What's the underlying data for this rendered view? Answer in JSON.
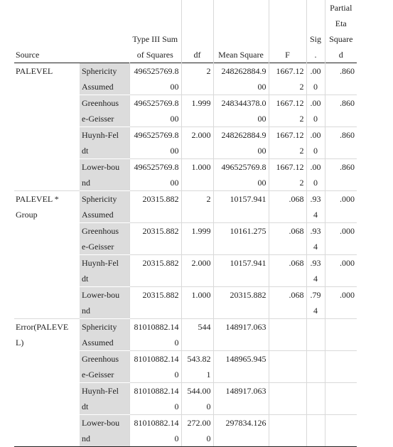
{
  "headers": {
    "source": "Source",
    "ss_line1": "Type III Sum",
    "ss_line2": "of Squares",
    "df": "df",
    "ms": "Mean Square",
    "f": "F",
    "sig_line1": "Sig",
    "sig_line2": ".",
    "pes_line1": "Partial",
    "pes_line2": "Eta",
    "pes_line3": "Square",
    "pes_line4": "d"
  },
  "groups": [
    {
      "source_line1": "PALEVEL",
      "source_line2": "",
      "rows": [
        {
          "v1": "Sphericity",
          "v2": "Assumed",
          "ss1": "496525769.8",
          "ss2": "00",
          "df1": "2",
          "df2": "",
          "ms1": "248262884.9",
          "ms2": "00",
          "f1": "1667.12",
          "f2": "2",
          "sig1": ".00",
          "sig2": "0",
          "pes": ".860"
        },
        {
          "v1": "Greenhous",
          "v2": "e-Geisser",
          "ss1": "496525769.8",
          "ss2": "00",
          "df1": "1.999",
          "df2": "",
          "ms1": "248344378.0",
          "ms2": "00",
          "f1": "1667.12",
          "f2": "2",
          "sig1": ".00",
          "sig2": "0",
          "pes": ".860"
        },
        {
          "v1": "Huynh-Fel",
          "v2": "dt",
          "ss1": "496525769.8",
          "ss2": "00",
          "df1": "2.000",
          "df2": "",
          "ms1": "248262884.9",
          "ms2": "00",
          "f1": "1667.12",
          "f2": "2",
          "sig1": ".00",
          "sig2": "0",
          "pes": ".860"
        },
        {
          "v1": "Lower-bou",
          "v2": "nd",
          "ss1": "496525769.8",
          "ss2": "00",
          "df1": "1.000",
          "df2": "",
          "ms1": "496525769.8",
          "ms2": "00",
          "f1": "1667.12",
          "f2": "2",
          "sig1": ".00",
          "sig2": "0",
          "pes": ".860"
        }
      ]
    },
    {
      "source_line1": "PALEVEL *",
      "source_line2": "Group",
      "rows": [
        {
          "v1": "Sphericity",
          "v2": "Assumed",
          "ss1": "20315.882",
          "ss2": "",
          "df1": "2",
          "df2": "",
          "ms1": "10157.941",
          "ms2": "",
          "f1": ".068",
          "f2": "",
          "sig1": ".93",
          "sig2": "4",
          "pes": ".000"
        },
        {
          "v1": "Greenhous",
          "v2": "e-Geisser",
          "ss1": "20315.882",
          "ss2": "",
          "df1": "1.999",
          "df2": "",
          "ms1": "10161.275",
          "ms2": "",
          "f1": ".068",
          "f2": "",
          "sig1": ".93",
          "sig2": "4",
          "pes": ".000"
        },
        {
          "v1": "Huynh-Fel",
          "v2": "dt",
          "ss1": "20315.882",
          "ss2": "",
          "df1": "2.000",
          "df2": "",
          "ms1": "10157.941",
          "ms2": "",
          "f1": ".068",
          "f2": "",
          "sig1": ".93",
          "sig2": "4",
          "pes": ".000"
        },
        {
          "v1": "Lower-bou",
          "v2": "nd",
          "ss1": "20315.882",
          "ss2": "",
          "df1": "1.000",
          "df2": "",
          "ms1": "20315.882",
          "ms2": "",
          "f1": ".068",
          "f2": "",
          "sig1": ".79",
          "sig2": "4",
          "pes": ".000"
        }
      ]
    },
    {
      "source_line1": "Error(PALEVE",
      "source_line2": "L)",
      "rows": [
        {
          "v1": "Sphericity",
          "v2": "Assumed",
          "ss1": "81010882.14",
          "ss2": "0",
          "df1": "544",
          "df2": "",
          "ms1": "148917.063",
          "ms2": "",
          "f1": "",
          "f2": "",
          "sig1": "",
          "sig2": "",
          "pes": ""
        },
        {
          "v1": "Greenhous",
          "v2": "e-Geisser",
          "ss1": "81010882.14",
          "ss2": "0",
          "df1": "543.82",
          "df2": "1",
          "ms1": "148965.945",
          "ms2": "",
          "f1": "",
          "f2": "",
          "sig1": "",
          "sig2": "",
          "pes": ""
        },
        {
          "v1": "Huynh-Fel",
          "v2": "dt",
          "ss1": "81010882.14",
          "ss2": "0",
          "df1": "544.00",
          "df2": "0",
          "ms1": "148917.063",
          "ms2": "",
          "f1": "",
          "f2": "",
          "sig1": "",
          "sig2": "",
          "pes": ""
        },
        {
          "v1": "Lower-bou",
          "v2": "nd",
          "ss1": "81010882.14",
          "ss2": "0",
          "df1": "272.00",
          "df2": "0",
          "ms1": "297834.126",
          "ms2": "",
          "f1": "",
          "f2": "",
          "sig1": "",
          "sig2": "",
          "pes": ""
        }
      ]
    }
  ]
}
